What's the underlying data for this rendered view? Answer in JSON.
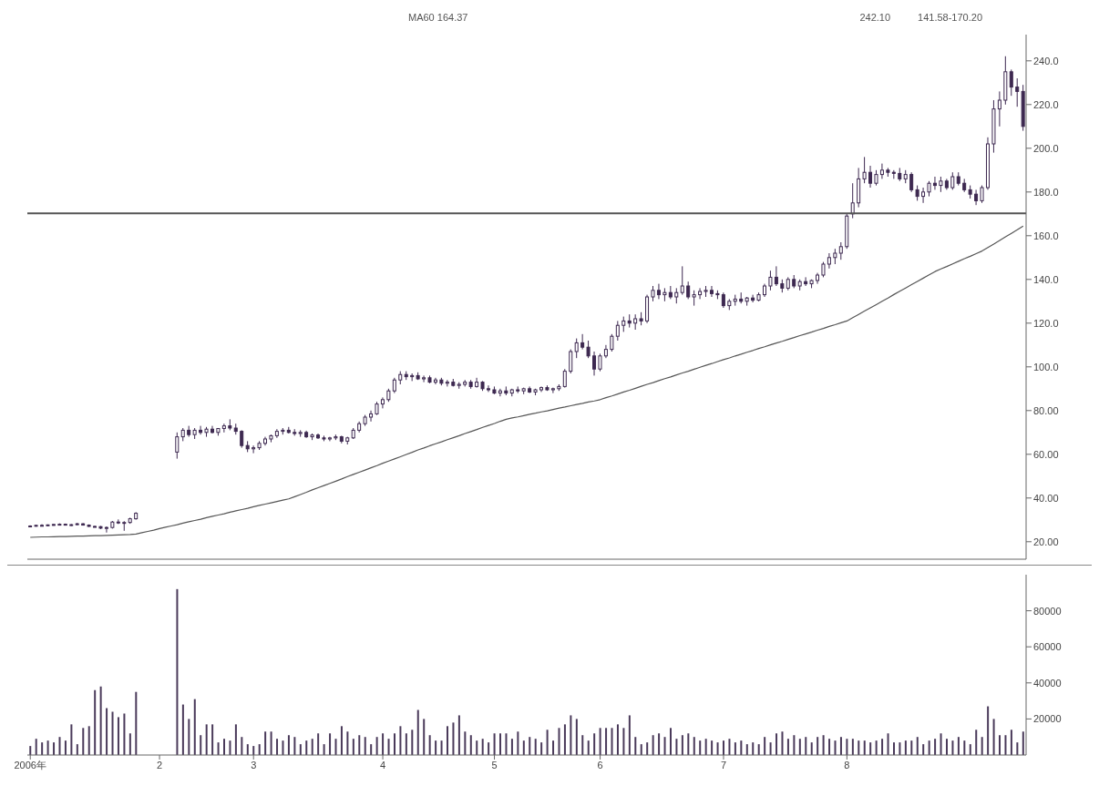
{
  "chart_data": [
    {
      "type": "candlestick",
      "color": "#3d2850",
      "ohlc": [
        [
          27,
          27.5,
          26.6,
          27.2
        ],
        [
          27.2,
          27.8,
          26.9,
          27.5
        ],
        [
          27.5,
          28,
          27.1,
          27.3
        ],
        [
          27.3,
          27.9,
          27,
          27.7
        ],
        [
          27.7,
          28.2,
          27.3,
          27.9
        ],
        [
          27.9,
          28.4,
          27.5,
          28
        ],
        [
          28,
          28.3,
          27.4,
          27.6
        ],
        [
          27.6,
          28.1,
          27.2,
          27.8
        ],
        [
          27.8,
          28.6,
          27.5,
          28.2
        ],
        [
          28.2,
          28.5,
          27.4,
          27.6
        ],
        [
          27.6,
          27.9,
          26.8,
          27
        ],
        [
          27,
          27.4,
          26.5,
          26.9
        ],
        [
          26.9,
          27.2,
          25.8,
          26.2
        ],
        [
          26.2,
          27,
          24.2,
          26.5
        ],
        [
          26.5,
          29.5,
          26,
          29
        ],
        [
          29,
          30.2,
          28.1,
          28.6
        ],
        [
          28.6,
          29.4,
          25,
          28.8
        ],
        [
          28.8,
          31,
          28.2,
          30.5
        ],
        [
          30.5,
          33.5,
          30.1,
          33
        ],
        null,
        null,
        null,
        null,
        null,
        null,
        [
          61,
          70,
          58,
          68
        ],
        [
          68,
          72,
          66,
          71
        ],
        [
          71,
          73,
          68,
          69
        ],
        [
          69,
          72,
          67,
          71
        ],
        [
          71,
          73,
          69,
          70
        ],
        [
          70,
          72.5,
          68,
          71.5
        ],
        [
          71.5,
          73,
          69.5,
          70
        ],
        [
          70,
          72,
          68.5,
          71.8
        ],
        [
          71.8,
          74,
          70,
          73
        ],
        [
          73,
          76,
          71,
          72
        ],
        [
          72,
          74,
          69,
          70.5
        ],
        [
          70.5,
          71,
          63,
          64
        ],
        [
          64,
          66,
          61,
          62.5
        ],
        [
          62.5,
          64,
          60.5,
          63
        ],
        [
          63,
          66,
          62,
          65
        ],
        [
          65,
          68,
          64,
          67
        ],
        [
          67,
          69,
          65.5,
          68.5
        ],
        [
          68.5,
          71.5,
          67.5,
          70.5
        ],
        [
          70.5,
          72,
          69,
          71
        ],
        [
          71,
          72.5,
          69.5,
          70
        ],
        [
          70,
          71.5,
          68.5,
          69.5
        ],
        [
          69.5,
          71,
          68,
          70
        ],
        [
          70,
          70.8,
          67.5,
          68
        ],
        [
          68,
          69.5,
          66.5,
          68.8
        ],
        [
          68.8,
          69.5,
          67,
          67.5
        ],
        [
          67.5,
          68.5,
          66,
          67
        ],
        [
          67,
          68,
          66,
          67.5
        ],
        [
          67.5,
          69,
          66.5,
          68
        ],
        [
          68,
          68.5,
          65,
          66
        ],
        [
          66,
          68,
          64.5,
          67.5
        ],
        [
          67.5,
          72,
          67,
          71
        ],
        [
          71,
          75,
          70,
          74
        ],
        [
          74,
          78,
          73,
          77
        ],
        [
          77,
          80,
          75,
          78.5
        ],
        [
          78.5,
          84,
          78,
          83
        ],
        [
          83,
          86,
          81,
          85
        ],
        [
          85,
          90,
          84,
          89
        ],
        [
          89,
          95,
          88,
          94
        ],
        [
          94,
          98,
          92,
          96.5
        ],
        [
          96.5,
          98,
          94,
          95.5
        ],
        [
          95.5,
          97,
          93.5,
          96
        ],
        [
          96,
          97.5,
          94,
          94.5
        ],
        [
          94.5,
          96,
          93,
          95
        ],
        [
          95,
          96,
          92.5,
          93
        ],
        [
          93,
          95,
          92,
          94
        ],
        [
          94,
          95,
          91.5,
          92.5
        ],
        [
          92.5,
          94,
          91,
          93
        ],
        [
          93,
          94.5,
          91,
          91.5
        ],
        [
          91.5,
          93,
          90,
          92
        ],
        [
          92,
          94,
          91,
          93
        ],
        [
          93,
          94,
          90,
          91
        ],
        [
          91,
          95,
          90.5,
          93
        ],
        [
          93,
          93.5,
          89,
          90
        ],
        [
          90,
          91.5,
          88.5,
          89.5
        ],
        [
          89.5,
          91,
          87.5,
          88
        ],
        [
          88,
          90,
          86.5,
          89
        ],
        [
          89,
          91,
          87,
          88
        ],
        [
          88,
          90,
          86.5,
          89.5
        ],
        [
          89.5,
          91,
          88,
          89
        ],
        [
          89,
          90.5,
          87.5,
          90
        ],
        [
          90,
          91,
          88,
          88.5
        ],
        [
          88.5,
          90,
          87,
          89.5
        ],
        [
          89.5,
          91,
          88.5,
          90.5
        ],
        [
          90.5,
          91.5,
          89,
          89.5
        ],
        [
          89.5,
          90.5,
          88,
          90
        ],
        [
          90,
          92,
          89,
          91
        ],
        [
          91,
          99,
          90.5,
          98
        ],
        [
          98,
          108,
          97,
          107
        ],
        [
          107,
          113,
          104,
          111
        ],
        [
          111,
          115,
          108,
          109
        ],
        [
          109,
          112,
          104,
          105
        ],
        [
          105,
          107,
          96,
          99
        ],
        [
          99,
          106,
          98,
          105
        ],
        [
          105,
          110,
          104,
          108
        ],
        [
          108,
          115,
          107,
          114
        ],
        [
          114,
          121,
          112,
          119
        ],
        [
          119,
          123,
          116,
          121
        ],
        [
          121,
          124,
          118,
          120
        ],
        [
          120,
          124,
          117,
          122
        ],
        [
          122,
          125,
          119,
          121
        ],
        [
          121,
          133,
          120,
          132
        ],
        [
          132,
          137,
          130,
          135
        ],
        [
          135,
          138,
          131,
          133
        ],
        [
          133,
          136,
          130,
          134
        ],
        [
          134,
          137,
          131,
          132
        ],
        [
          132,
          136,
          129,
          134
        ],
        [
          134,
          146,
          133,
          137
        ],
        [
          137,
          139,
          131,
          132
        ],
        [
          132,
          135,
          128,
          133
        ],
        [
          133,
          136,
          131,
          134.5
        ],
        [
          134.5,
          137,
          132,
          135
        ],
        [
          135,
          137,
          132,
          133.5
        ],
        [
          133.5,
          135,
          131,
          133
        ],
        [
          133,
          134,
          127,
          128
        ],
        [
          128,
          131,
          126,
          130
        ],
        [
          130,
          133,
          128,
          131
        ],
        [
          131,
          134,
          129,
          130
        ],
        [
          130,
          132,
          128,
          131.5
        ],
        [
          131.5,
          133,
          129.5,
          130.5
        ],
        [
          130.5,
          134,
          130,
          133
        ],
        [
          133,
          138,
          132,
          137
        ],
        [
          137,
          144,
          135,
          141
        ],
        [
          141,
          146,
          137,
          138
        ],
        [
          138,
          140,
          134,
          136
        ],
        [
          136,
          141,
          135,
          140
        ],
        [
          140,
          142,
          136,
          137
        ],
        [
          137,
          140,
          135,
          139
        ],
        [
          139,
          141,
          137,
          138
        ],
        [
          138,
          140,
          136,
          139.5
        ],
        [
          139.5,
          143,
          138,
          142
        ],
        [
          142,
          148,
          141,
          147
        ],
        [
          147,
          152,
          145,
          150
        ],
        [
          150,
          154,
          147,
          152
        ],
        [
          152,
          157,
          149,
          155
        ],
        [
          155,
          170,
          154,
          169
        ],
        [
          170,
          184,
          168,
          175
        ],
        [
          175,
          191,
          173,
          186
        ],
        [
          186,
          196,
          184,
          189
        ],
        [
          189,
          192,
          182,
          184
        ],
        [
          184,
          190,
          183,
          188
        ],
        [
          188,
          193,
          186,
          190
        ],
        [
          190,
          191,
          187,
          189
        ],
        [
          189,
          190,
          186,
          188.5
        ],
        [
          188.5,
          191,
          185,
          186
        ],
        [
          186,
          190,
          184,
          188
        ],
        [
          188,
          189,
          180,
          181
        ],
        [
          181,
          183,
          176,
          178
        ],
        [
          178,
          182,
          175,
          180
        ],
        [
          180,
          185,
          178,
          184
        ],
        [
          184,
          187,
          181,
          183
        ],
        [
          183,
          187,
          180,
          185
        ],
        [
          185,
          186,
          181,
          182
        ],
        [
          182,
          189,
          181,
          187
        ],
        [
          187,
          189,
          183,
          184
        ],
        [
          184,
          186,
          180,
          181
        ],
        [
          181,
          183,
          177,
          179
        ],
        [
          179,
          181,
          174,
          176
        ],
        [
          176,
          183,
          175,
          182
        ],
        [
          182,
          205,
          181,
          202
        ],
        [
          202,
          222,
          198,
          218
        ],
        [
          218,
          226,
          210,
          222
        ],
        [
          222,
          242.1,
          220,
          235
        ],
        [
          235,
          236,
          224,
          228
        ],
        [
          228,
          232,
          219,
          226
        ],
        [
          226,
          229,
          208,
          210
        ]
      ],
      "series": [
        {
          "type": "line",
          "color": "#555555",
          "values": [
            22,
            22.1,
            22.2,
            22.2,
            22.3,
            22.4,
            22.4,
            22.5,
            22.6,
            22.6,
            22.7,
            22.8,
            22.8,
            22.9,
            23,
            23.1,
            23.2,
            23.3,
            23.5,
            24.1,
            24.7,
            25.3,
            26,
            26.6,
            27.2,
            27.8,
            28.5,
            29.1,
            29.7,
            30.3,
            31,
            31.6,
            32.2,
            32.8,
            33.5,
            34.1,
            34.7,
            35.3,
            36,
            36.6,
            37.2,
            37.8,
            38.4,
            39,
            39.6,
            40.6,
            41.6,
            42.6,
            43.7,
            44.7,
            45.7,
            46.7,
            47.7,
            48.7,
            49.8,
            50.8,
            51.8,
            52.8,
            53.8,
            54.8,
            55.9,
            56.9,
            57.9,
            58.9,
            59.9,
            60.9,
            62,
            62.9,
            63.9,
            64.8,
            65.7,
            66.7,
            67.6,
            68.5,
            69.5,
            70.4,
            71.3,
            72.3,
            73.2,
            74.1,
            75.1,
            76,
            76.6,
            77.1,
            77.7,
            78.3,
            78.8,
            79.4,
            79.9,
            80.5,
            81.1,
            81.6,
            82.2,
            82.8,
            83.3,
            83.9,
            84.4,
            85,
            85.9,
            86.7,
            87.6,
            88.5,
            89.3,
            90.2,
            91.1,
            92,
            92.8,
            93.7,
            94.6,
            95.4,
            96.3,
            97.2,
            98,
            98.9,
            99.8,
            100.7,
            101.5,
            102.4,
            103.3,
            104.1,
            105,
            105.8,
            106.7,
            107.5,
            108.4,
            109.2,
            110.1,
            110.9,
            111.7,
            112.6,
            113.4,
            114.3,
            115.1,
            115.9,
            116.8,
            117.6,
            118.5,
            119.3,
            120.2,
            121,
            122.5,
            124,
            125.5,
            127,
            128.5,
            130,
            131.5,
            133.1,
            134.6,
            136.1,
            137.6,
            139.1,
            140.6,
            142.1,
            143.6,
            144.8,
            145.9,
            147.1,
            148.3,
            149.5,
            150.6,
            151.8,
            153,
            154.6,
            156.2,
            157.8,
            159.5,
            161.1,
            162.7,
            164.4
          ]
        }
      ],
      "ylim": [
        12,
        252
      ],
      "yticks": [
        {
          "value": 20,
          "label": "20.00"
        },
        {
          "value": 40,
          "label": "40.00"
        },
        {
          "value": 60,
          "label": "60.00"
        },
        {
          "value": 80,
          "label": "80.00"
        },
        {
          "value": 100,
          "label": "100.0"
        },
        {
          "value": 120,
          "label": "120.0"
        },
        {
          "value": 140,
          "label": "140.0"
        },
        {
          "value": 160,
          "label": "160.0"
        },
        {
          "value": 180,
          "label": "180.0"
        },
        {
          "value": 200,
          "label": "200.0"
        },
        {
          "value": 220,
          "label": "220.0"
        },
        {
          "value": 240,
          "label": "240.0"
        }
      ],
      "tick_labels": "y",
      "annotations": [
        "MA60 164.37",
        "242.10",
        "141.58-170.20"
      ],
      "ref_lines": [
        {
          "axis": "y",
          "value": 170.2,
          "color": "#555555"
        }
      ]
    },
    {
      "type": "bar",
      "color": "#4a3a5a",
      "categories": [
        "2006年",
        null,
        null,
        null,
        null,
        null,
        null,
        null,
        null,
        null,
        null,
        null,
        null,
        null,
        null,
        null,
        null,
        null,
        null,
        null,
        null,
        null,
        "2",
        null,
        null,
        null,
        null,
        null,
        null,
        null,
        null,
        null,
        null,
        null,
        null,
        null,
        null,
        null,
        "3",
        null,
        null,
        null,
        null,
        null,
        null,
        null,
        null,
        null,
        null,
        null,
        null,
        null,
        null,
        null,
        null,
        null,
        null,
        null,
        null,
        null,
        "4",
        null,
        null,
        null,
        null,
        null,
        null,
        null,
        null,
        null,
        null,
        null,
        null,
        null,
        null,
        null,
        null,
        null,
        null,
        "5",
        null,
        null,
        null,
        null,
        null,
        null,
        null,
        null,
        null,
        null,
        null,
        null,
        null,
        null,
        null,
        null,
        null,
        "6",
        null,
        null,
        null,
        null,
        null,
        null,
        null,
        null,
        null,
        null,
        null,
        null,
        null,
        null,
        null,
        null,
        null,
        null,
        null,
        null,
        "7",
        null,
        null,
        null,
        null,
        null,
        null,
        null,
        null,
        null,
        null,
        null,
        null,
        null,
        null,
        null,
        null,
        null,
        null,
        null,
        null,
        "8",
        null,
        null,
        null,
        null,
        null,
        null,
        null,
        null,
        null,
        null,
        null,
        null,
        null,
        null,
        null,
        null,
        null,
        null,
        null,
        null,
        null,
        null,
        null,
        null,
        null,
        null,
        null,
        null,
        null,
        null
      ],
      "values": [
        5000,
        9000,
        7000,
        8000,
        7000,
        10000,
        8000,
        17000,
        6000,
        15000,
        16000,
        36000,
        38000,
        26000,
        24000,
        21000,
        23000,
        12000,
        35000,
        null,
        null,
        null,
        null,
        null,
        null,
        92000,
        28000,
        20000,
        31000,
        11000,
        17000,
        17000,
        7000,
        9000,
        8000,
        17000,
        10000,
        6000,
        5000,
        6000,
        13000,
        13000,
        9000,
        8000,
        11000,
        10000,
        6000,
        8000,
        9000,
        12000,
        6000,
        12000,
        9000,
        16000,
        13000,
        9000,
        11000,
        10000,
        6000,
        10000,
        12000,
        9000,
        12000,
        16000,
        12000,
        14000,
        25000,
        20000,
        11000,
        8000,
        8000,
        16000,
        18000,
        22000,
        13000,
        11000,
        8000,
        9000,
        7000,
        12000,
        12000,
        12000,
        9000,
        13000,
        8000,
        10000,
        9000,
        7000,
        14000,
        8000,
        15000,
        17000,
        22000,
        20000,
        11000,
        8000,
        12000,
        15000,
        15000,
        15000,
        17000,
        15000,
        22000,
        10000,
        6000,
        7000,
        11000,
        12000,
        10000,
        15000,
        9000,
        11000,
        12000,
        10000,
        8000,
        9000,
        8000,
        7000,
        8000,
        9000,
        7000,
        8000,
        6000,
        7000,
        6000,
        10000,
        7000,
        12000,
        13000,
        9000,
        11000,
        9000,
        10000,
        7000,
        10000,
        11000,
        9000,
        8000,
        10000,
        9000,
        9000,
        8000,
        8000,
        7000,
        8000,
        9000,
        12000,
        7000,
        7000,
        8000,
        8000,
        10000,
        6000,
        8000,
        9000,
        12000,
        9000,
        8000,
        10000,
        8000,
        6000,
        14000,
        10000,
        27000,
        20000,
        11000,
        11000,
        14000,
        7000,
        13000
      ],
      "ylim": [
        0,
        100000
      ],
      "yticks": [
        20000,
        40000,
        60000,
        80000
      ]
    }
  ]
}
